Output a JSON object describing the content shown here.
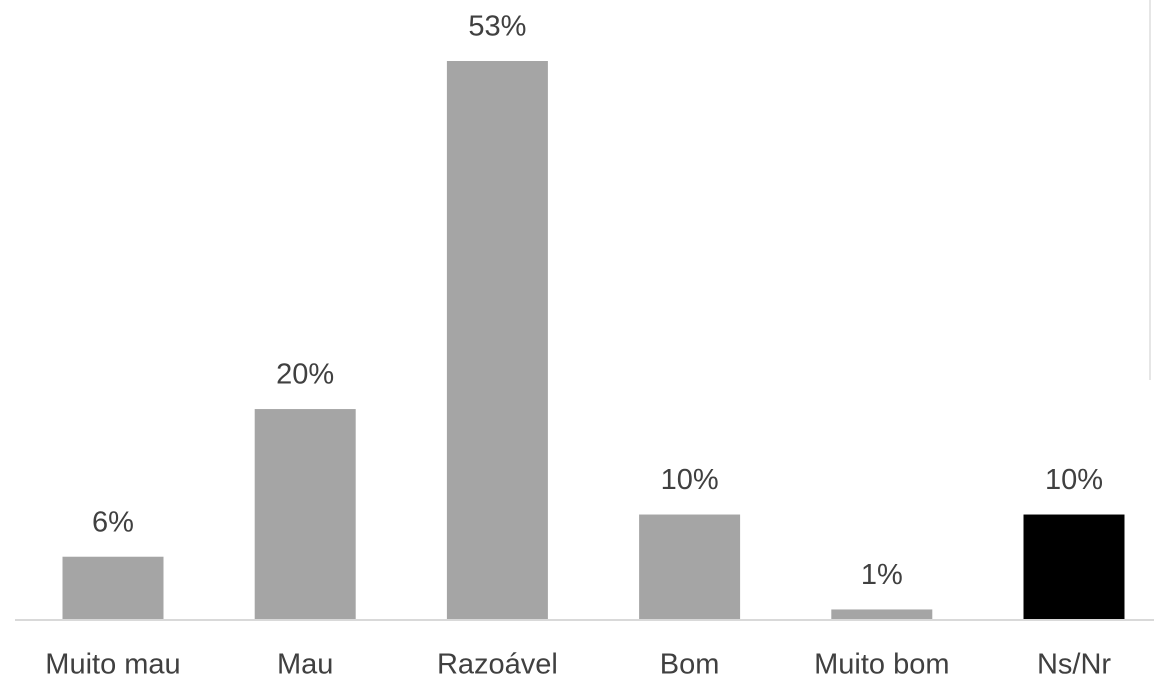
{
  "chart_data": {
    "type": "bar",
    "categories": [
      "Muito mau",
      "Mau",
      "Razoável",
      "Bom",
      "Muito bom",
      "Ns/Nr"
    ],
    "values": [
      6,
      20,
      53,
      10,
      1,
      10
    ],
    "value_labels": [
      "6%",
      "20%",
      "53%",
      "10%",
      "1%",
      "10%"
    ],
    "colors": [
      "#a5a5a5",
      "#a5a5a5",
      "#a5a5a5",
      "#a5a5a5",
      "#a5a5a5",
      "#000000"
    ]
  }
}
